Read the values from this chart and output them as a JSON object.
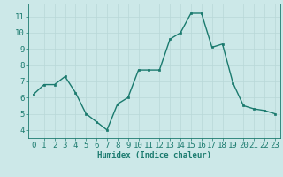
{
  "xlabel": "Humidex (Indice chaleur)",
  "x": [
    0,
    1,
    2,
    3,
    4,
    5,
    6,
    7,
    8,
    9,
    10,
    11,
    12,
    13,
    14,
    15,
    16,
    17,
    18,
    19,
    20,
    21,
    22,
    23
  ],
  "y": [
    6.2,
    6.8,
    6.8,
    7.3,
    6.3,
    5.0,
    4.5,
    4.0,
    5.6,
    6.0,
    7.7,
    7.7,
    7.7,
    9.6,
    10.0,
    11.2,
    11.2,
    9.1,
    9.3,
    6.9,
    5.5,
    5.3,
    5.2,
    5.0
  ],
  "line_color": "#1a7a6e",
  "marker_color": "#1a7a6e",
  "bg_color": "#cce8e8",
  "grid_color": "#b8d8d8",
  "tick_color": "#1a7a6e",
  "label_color": "#1a7a6e",
  "ylim": [
    3.5,
    11.8
  ],
  "yticks": [
    4,
    5,
    6,
    7,
    8,
    9,
    10,
    11
  ],
  "xlim": [
    -0.5,
    23.5
  ],
  "xticks": [
    0,
    1,
    2,
    3,
    4,
    5,
    6,
    7,
    8,
    9,
    10,
    11,
    12,
    13,
    14,
    15,
    16,
    17,
    18,
    19,
    20,
    21,
    22,
    23
  ],
  "xlabel_fontsize": 6.5,
  "tick_fontsize": 6.5,
  "marker_size": 2.0,
  "line_width": 1.0
}
